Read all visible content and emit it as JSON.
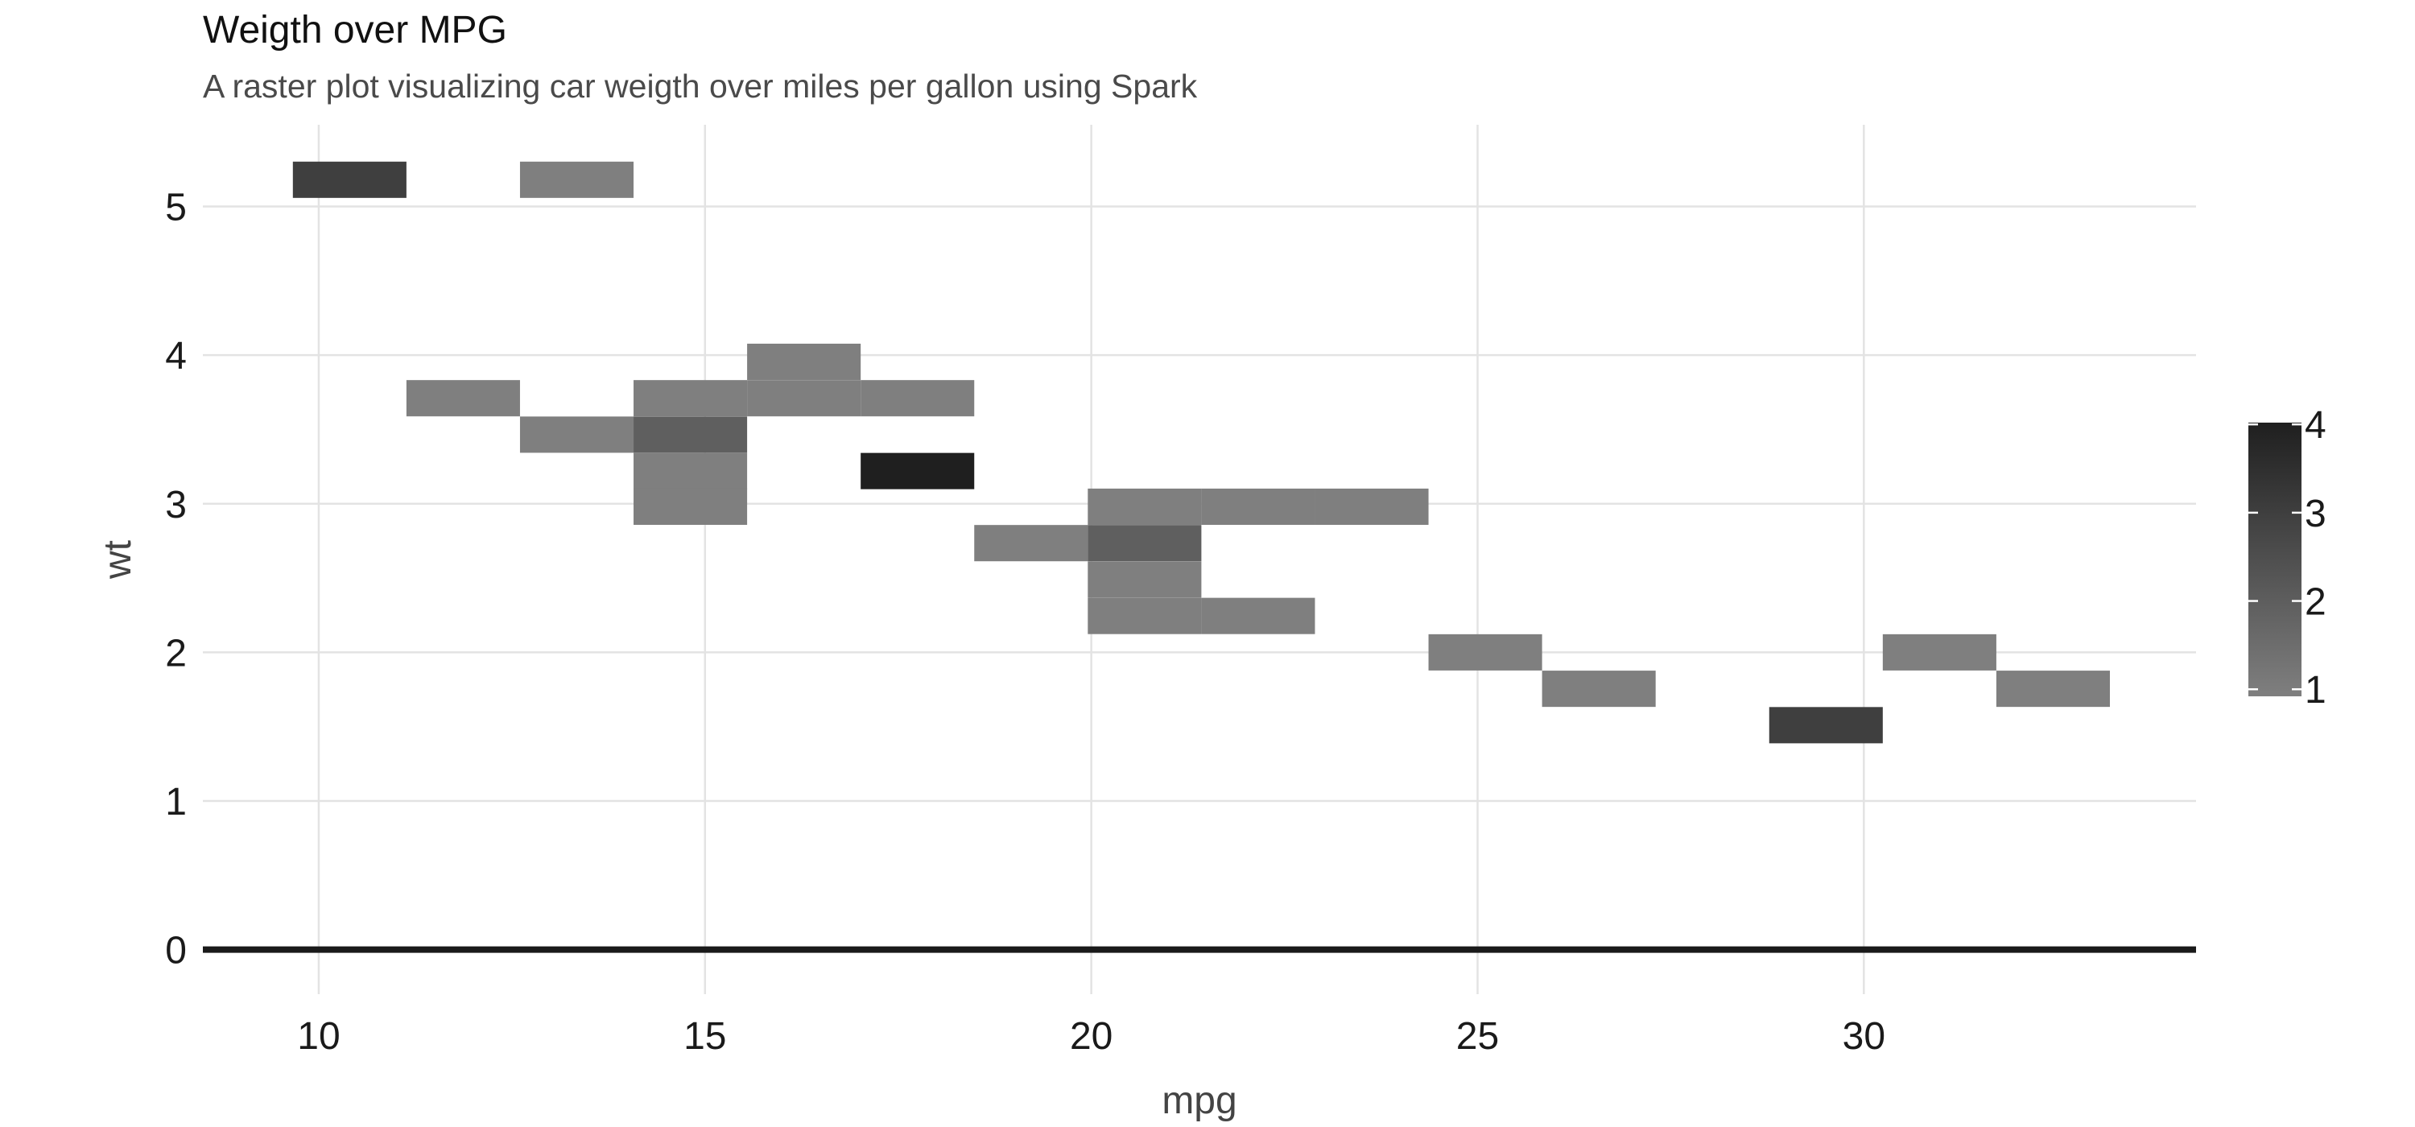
{
  "chart_data": {
    "type": "heatmap",
    "title": "Weigth over MPG",
    "subtitle": "A raster plot visualizing car weigth over miles per gallon using Spark",
    "xlabel": "mpg",
    "ylabel": "wt",
    "xlim": [
      8.5,
      34.3
    ],
    "ylim": [
      -0.3,
      5.55
    ],
    "x_ticks": [
      10,
      15,
      20,
      25,
      30
    ],
    "y_ticks": [
      0,
      1,
      2,
      3,
      4,
      5
    ],
    "grid": true,
    "legend": {
      "position": "right",
      "min": 1,
      "max": 4,
      "ticks": [
        1,
        2,
        3,
        4
      ],
      "low_color": "#7f7f7f",
      "high_color": "#1f1f1f"
    },
    "cell_size": {
      "mpg": 1.47,
      "wt": 0.244
    },
    "cells": [
      {
        "mpg": 10.4,
        "wt": 5.18,
        "count": 3
      },
      {
        "mpg": 13.34,
        "wt": 5.18,
        "count": 1
      },
      {
        "mpg": 11.87,
        "wt": 3.71,
        "count": 1
      },
      {
        "mpg": 13.34,
        "wt": 3.465,
        "count": 1
      },
      {
        "mpg": 14.81,
        "wt": 3.71,
        "count": 1
      },
      {
        "mpg": 14.81,
        "wt": 3.465,
        "count": 2
      },
      {
        "mpg": 14.81,
        "wt": 3.22,
        "count": 1
      },
      {
        "mpg": 14.81,
        "wt": 2.98,
        "count": 1
      },
      {
        "mpg": 16.28,
        "wt": 3.955,
        "count": 1
      },
      {
        "mpg": 16.28,
        "wt": 3.71,
        "count": 1
      },
      {
        "mpg": 17.75,
        "wt": 3.71,
        "count": 1
      },
      {
        "mpg": 17.75,
        "wt": 3.22,
        "count": 4
      },
      {
        "mpg": 19.22,
        "wt": 2.735,
        "count": 1
      },
      {
        "mpg": 20.69,
        "wt": 2.98,
        "count": 1
      },
      {
        "mpg": 20.69,
        "wt": 2.735,
        "count": 2
      },
      {
        "mpg": 20.69,
        "wt": 2.49,
        "count": 1
      },
      {
        "mpg": 20.69,
        "wt": 2.245,
        "count": 1
      },
      {
        "mpg": 22.16,
        "wt": 2.98,
        "count": 1
      },
      {
        "mpg": 22.16,
        "wt": 2.245,
        "count": 1
      },
      {
        "mpg": 23.63,
        "wt": 2.98,
        "count": 1
      },
      {
        "mpg": 25.1,
        "wt": 2.0,
        "count": 1
      },
      {
        "mpg": 26.57,
        "wt": 1.755,
        "count": 1
      },
      {
        "mpg": 29.51,
        "wt": 1.51,
        "count": 3
      },
      {
        "mpg": 30.98,
        "wt": 2.0,
        "count": 1
      },
      {
        "mpg": 32.45,
        "wt": 1.755,
        "count": 1
      }
    ]
  }
}
